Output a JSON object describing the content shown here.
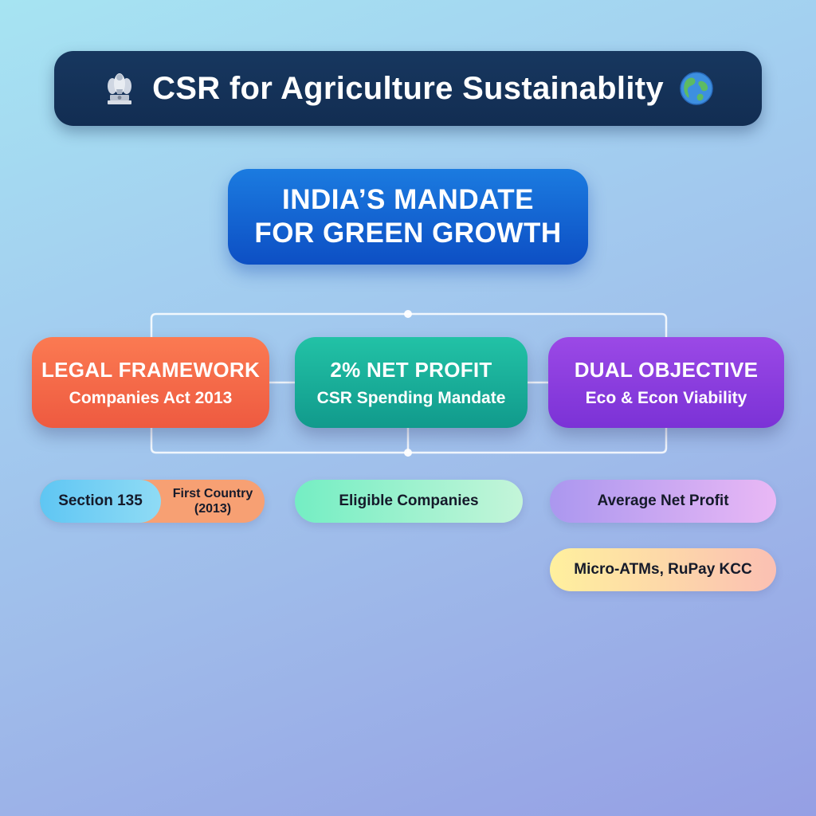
{
  "title": {
    "text": "CSR for Agriculture Sustainablity",
    "left_icon": "state-emblem-icon",
    "right_icon": "globe-icon"
  },
  "mandate": {
    "line1": "INDIA’S MANDATE",
    "line2": "FOR GREEN GROWTH"
  },
  "pillars": [
    {
      "title": "LEGAL FRAMEWORK",
      "subtitle": "Companies Act 2013",
      "color": "#f26a48"
    },
    {
      "title": "2% NET PROFIT",
      "subtitle": "CSR Spending Mandate",
      "color": "#16ab98"
    },
    {
      "title": "DUAL OBJECTIVE",
      "subtitle": "Eco & Econ Viability",
      "color": "#8a3ddf"
    }
  ],
  "tags": {
    "section": "Section 135",
    "first_country_line1": "First Country",
    "first_country_line2": "(2013)",
    "eligible": "Eligible Companies",
    "average": "Average Net Profit",
    "micro": "Micro-ATMs, RuPay KCC"
  }
}
